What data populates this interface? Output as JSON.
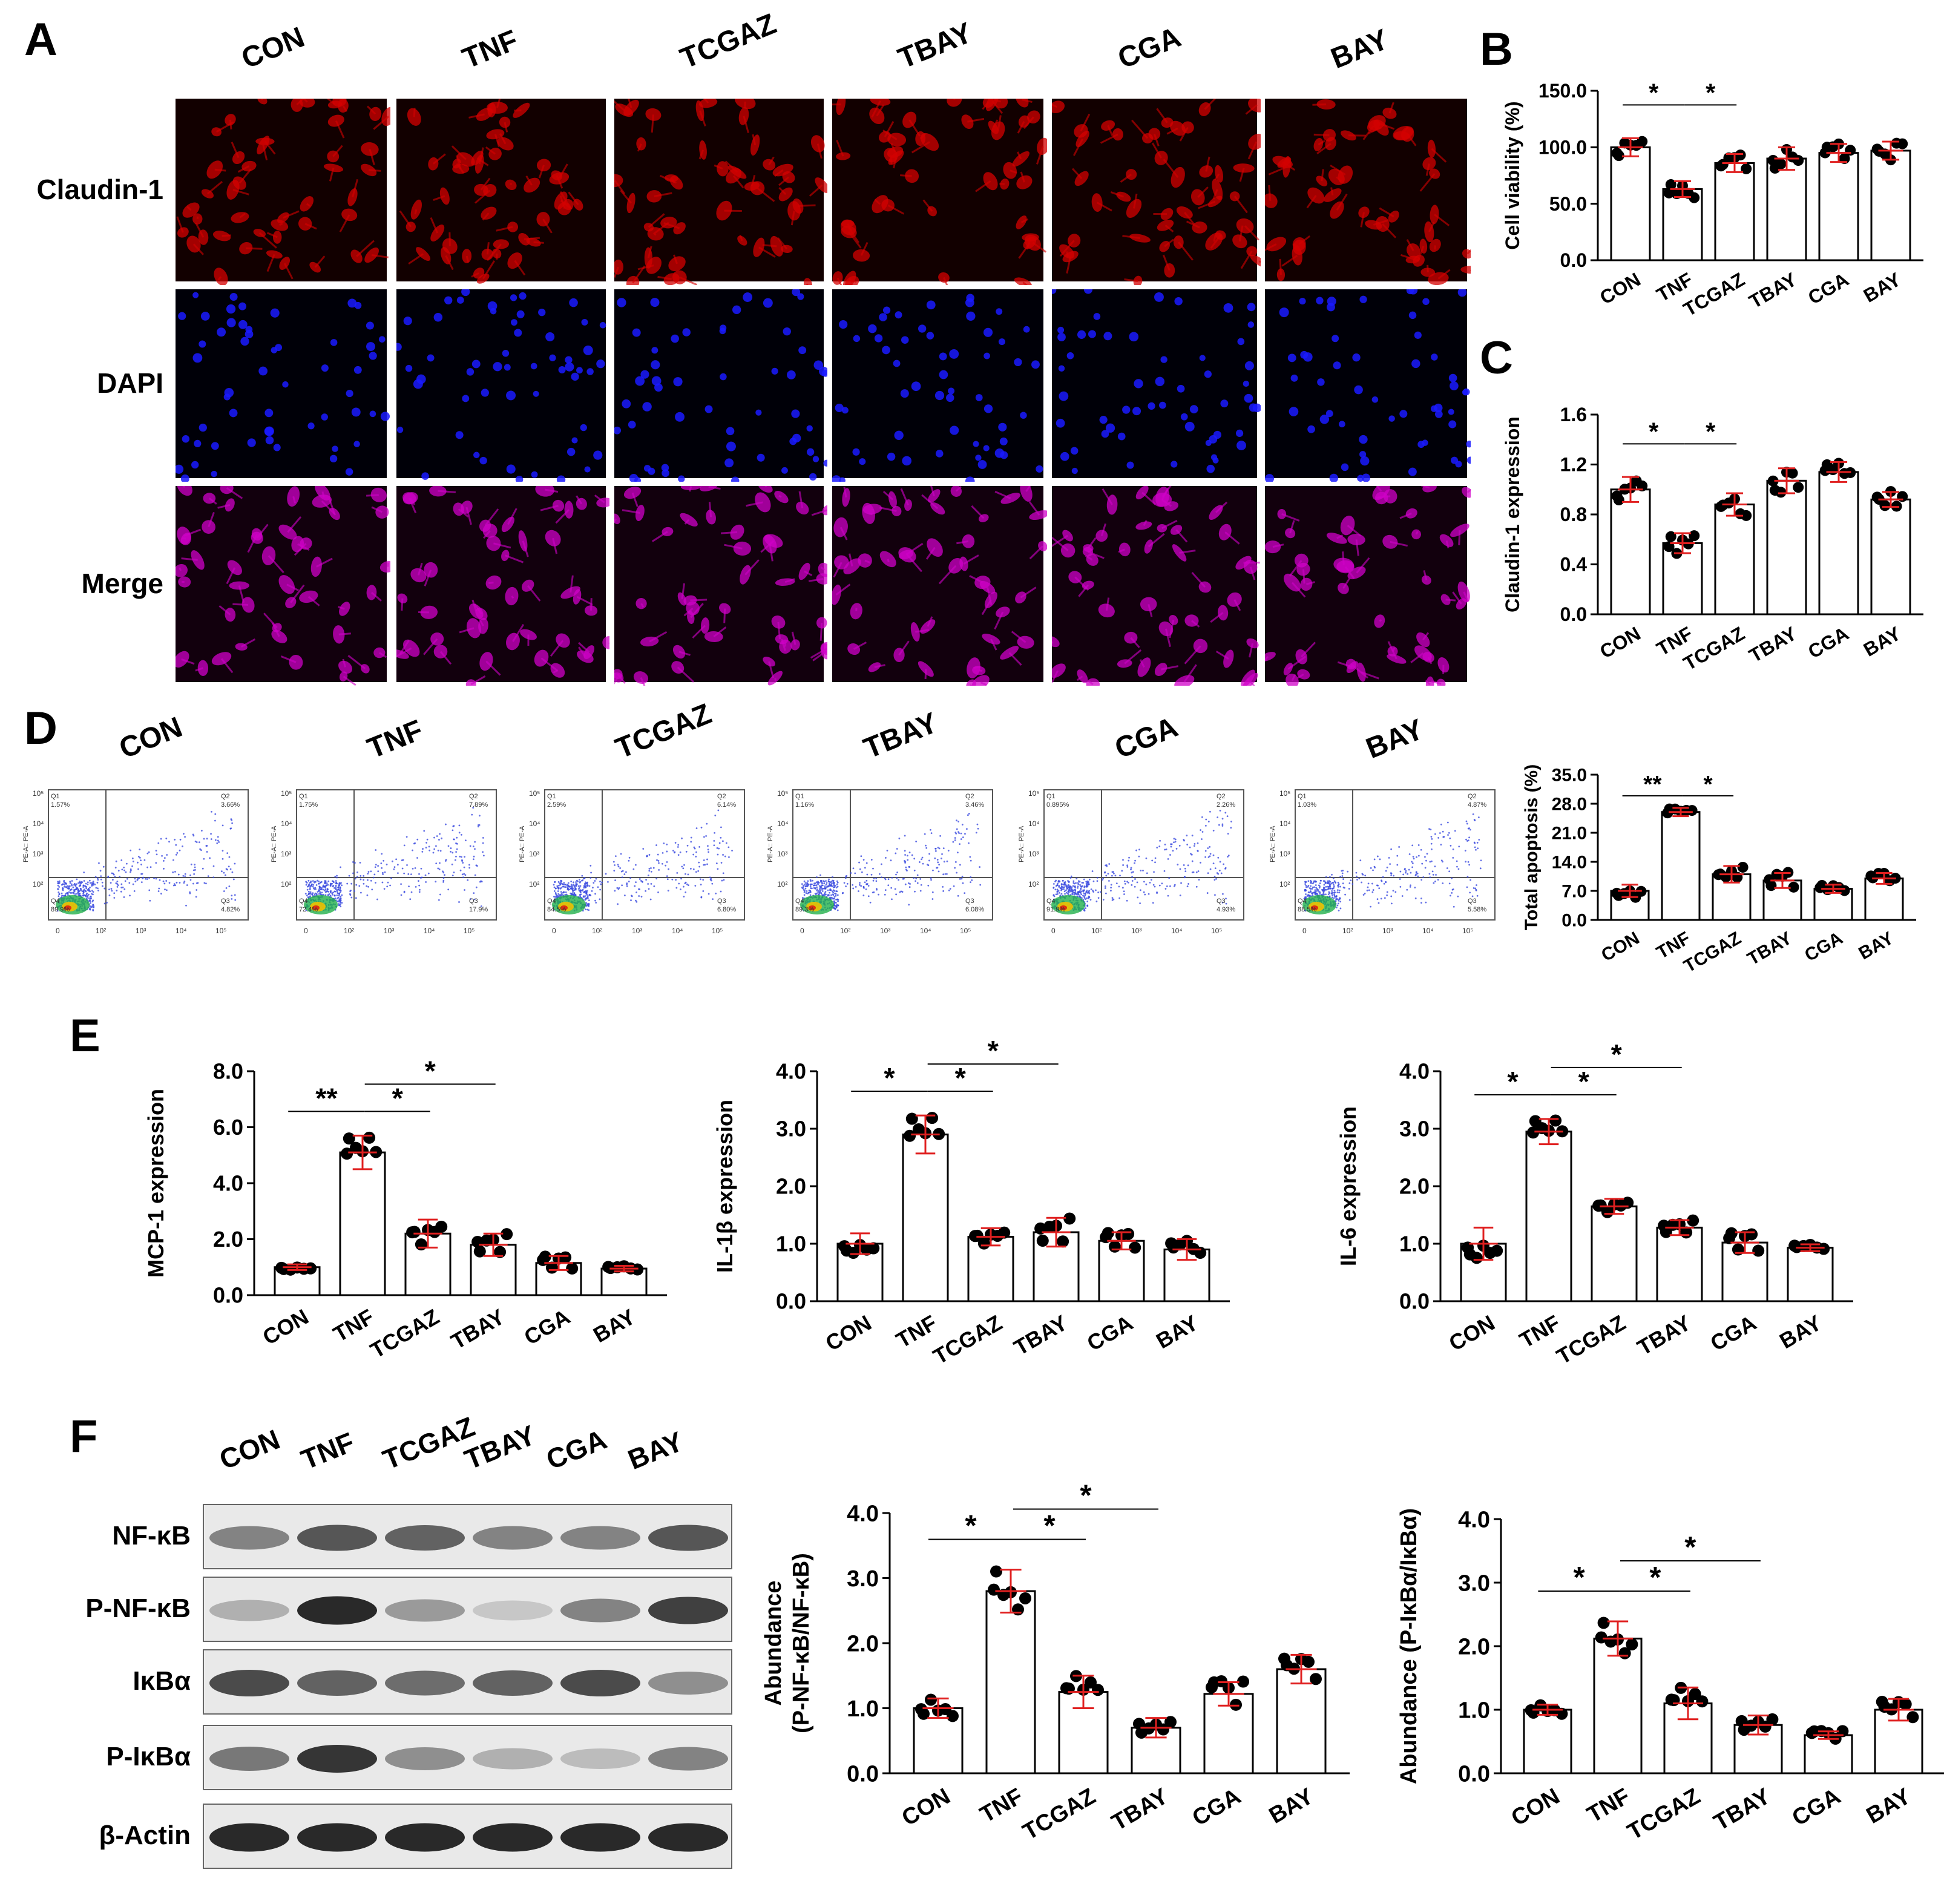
{
  "panels": {
    "A": "A",
    "B": "B",
    "C": "C",
    "D": "D",
    "E": "E",
    "F": "F"
  },
  "groups": [
    "CON",
    "TNF",
    "TCGAZ",
    "TBAY",
    "CGA",
    "BAY"
  ],
  "microscopy": {
    "rows": [
      "Claudin-1",
      "DAPI",
      "Merge"
    ],
    "colors": {
      "red": "#d40000",
      "blue": "#1a1aff",
      "merge": "#d000c8"
    }
  },
  "flow": {
    "plots": [
      {
        "group": "CON",
        "q1": "1.57%",
        "q2": "3.66%",
        "q3": "4.82%",
        "q4": "89.9%"
      },
      {
        "group": "TNF",
        "q1": "1.75%",
        "q2": "7.89%",
        "q3": "17.9%",
        "q4": "72.4%"
      },
      {
        "group": "TCGAZ",
        "q1": "2.59%",
        "q2": "6.14%",
        "q3": "6.80%",
        "q4": "84.5%"
      },
      {
        "group": "TBAY",
        "q1": "1.16%",
        "q2": "3.46%",
        "q3": "6.08%",
        "q4": "89.3%"
      },
      {
        "group": "CGA",
        "q1": "0.895%",
        "q2": "2.26%",
        "q3": "4.93%",
        "q4": "91.9%"
      },
      {
        "group": "BAY",
        "q1": "1.03%",
        "q2": "4.87%",
        "q3": "5.58%",
        "q4": "88.5%"
      }
    ],
    "quadrant_labels": [
      "Q1",
      "Q2",
      "Q3",
      "Q4"
    ],
    "y_axis_label": "PE-A:: PE-A",
    "x_ticks": [
      "0",
      "10²",
      "10³",
      "10⁴",
      "10⁵"
    ],
    "y_ticks": [
      "10²",
      "10³",
      "10⁴",
      "10⁵"
    ]
  },
  "blot": {
    "bands": [
      "NF-κB",
      "P-NF-κB",
      "IκBα",
      "P-IκBα",
      "β-Actin"
    ],
    "intensity": [
      [
        0.55,
        0.75,
        0.7,
        0.55,
        0.55,
        0.75
      ],
      [
        0.35,
        0.95,
        0.45,
        0.25,
        0.55,
        0.85
      ],
      [
        0.8,
        0.7,
        0.65,
        0.7,
        0.8,
        0.5
      ],
      [
        0.6,
        0.9,
        0.5,
        0.35,
        0.3,
        0.55
      ],
      [
        0.95,
        0.95,
        0.95,
        0.95,
        0.95,
        0.95
      ]
    ]
  },
  "chart_data": [
    {
      "id": "B",
      "type": "bar",
      "categories": [
        "CON",
        "TNF",
        "TCGAZ",
        "TBAY",
        "CGA",
        "BAY"
      ],
      "values": [
        100,
        63,
        86,
        90,
        95,
        97
      ],
      "errors": [
        8,
        7,
        8,
        10,
        8,
        8
      ],
      "ylabel": "Cell viability (%)",
      "ylim": [
        0,
        150
      ],
      "yticks": [
        "0.0",
        "50.0",
        "100.0",
        "150.0"
      ],
      "ytick_values": [
        0,
        50,
        100,
        150
      ],
      "sig": [
        {
          "from": 0,
          "to": 1,
          "label": "*",
          "level": 0
        },
        {
          "from": 1,
          "to": 2,
          "label": "*",
          "level": 0
        }
      ]
    },
    {
      "id": "C",
      "type": "bar",
      "categories": [
        "CON",
        "TNF",
        "TCGAZ",
        "TBAY",
        "CGA",
        "BAY"
      ],
      "values": [
        1.0,
        0.57,
        0.88,
        1.07,
        1.14,
        0.92
      ],
      "errors": [
        0.1,
        0.08,
        0.09,
        0.1,
        0.08,
        0.06
      ],
      "ylabel": "Claudin-1 expression",
      "ylim": [
        0,
        1.6
      ],
      "yticks": [
        "0.0",
        "0.4",
        "0.8",
        "1.2",
        "1.6"
      ],
      "ytick_values": [
        0,
        0.4,
        0.8,
        1.2,
        1.6
      ],
      "sig": [
        {
          "from": 0,
          "to": 1,
          "label": "*",
          "level": 0
        },
        {
          "from": 1,
          "to": 2,
          "label": "*",
          "level": 0
        }
      ]
    },
    {
      "id": "D",
      "type": "bar",
      "categories": [
        "CON",
        "TNF",
        "TCGAZ",
        "TBAY",
        "CGA",
        "BAY"
      ],
      "values": [
        7.0,
        26.0,
        11.0,
        9.5,
        7.5,
        10.0
      ],
      "errors": [
        1.5,
        1.0,
        2.0,
        1.8,
        1.0,
        1.3
      ],
      "ylabel": "Total apoptosis (%)",
      "ylim": [
        0,
        35
      ],
      "yticks": [
        "0.0",
        "7.0",
        "14.0",
        "21.0",
        "28.0",
        "35.0"
      ],
      "ytick_values": [
        0,
        7,
        14,
        21,
        28,
        35
      ],
      "sig": [
        {
          "from": 0,
          "to": 1,
          "label": "**",
          "level": 0
        },
        {
          "from": 1,
          "to": 2,
          "label": "*",
          "level": 0
        }
      ]
    },
    {
      "id": "E1",
      "type": "bar",
      "categories": [
        "CON",
        "TNF",
        "TCGAZ",
        "TBAY",
        "CGA",
        "BAY"
      ],
      "values": [
        1.0,
        5.1,
        2.2,
        1.8,
        1.15,
        0.95
      ],
      "errors": [
        0.1,
        0.6,
        0.5,
        0.4,
        0.25,
        0.1
      ],
      "ylabel": "MCP-1 expression",
      "ylim": [
        0,
        8
      ],
      "yticks": [
        "0.0",
        "2.0",
        "4.0",
        "6.0",
        "8.0"
      ],
      "ytick_values": [
        0,
        2,
        4,
        6,
        8
      ],
      "sig": [
        {
          "from": 0,
          "to": 1,
          "label": "**",
          "level": 0
        },
        {
          "from": 1,
          "to": 2,
          "label": "*",
          "level": 0
        },
        {
          "from": 1,
          "to": 3,
          "label": "*",
          "level": 1
        }
      ]
    },
    {
      "id": "E2",
      "type": "bar",
      "categories": [
        "CON",
        "TNF",
        "TCGAZ",
        "TBAY",
        "CGA",
        "BAY"
      ],
      "values": [
        1.0,
        2.9,
        1.12,
        1.2,
        1.05,
        0.9
      ],
      "errors": [
        0.18,
        0.33,
        0.15,
        0.25,
        0.15,
        0.18
      ],
      "ylabel": "IL-1β expression",
      "ylim": [
        0,
        4
      ],
      "yticks": [
        "0.0",
        "1.0",
        "2.0",
        "3.0",
        "4.0"
      ],
      "ytick_values": [
        0,
        1,
        2,
        3,
        4
      ],
      "sig": [
        {
          "from": 0,
          "to": 1,
          "label": "*",
          "level": 0
        },
        {
          "from": 1,
          "to": 2,
          "label": "*",
          "level": 0
        },
        {
          "from": 1,
          "to": 3,
          "label": "*",
          "level": 1
        }
      ]
    },
    {
      "id": "E3",
      "type": "bar",
      "categories": [
        "CON",
        "TNF",
        "TCGAZ",
        "TBAY",
        "CGA",
        "BAY"
      ],
      "values": [
        1.0,
        2.95,
        1.65,
        1.28,
        1.02,
        0.93
      ],
      "errors": [
        0.28,
        0.22,
        0.13,
        0.13,
        0.18,
        0.06
      ],
      "ylabel": "IL-6 expression",
      "ylim": [
        0,
        4
      ],
      "yticks": [
        "0.0",
        "1.0",
        "2.0",
        "3.0",
        "4.0"
      ],
      "ytick_values": [
        0,
        1,
        2,
        3,
        4
      ],
      "sig": [
        {
          "from": 0,
          "to": 1,
          "label": "*",
          "level": 0
        },
        {
          "from": 1,
          "to": 2,
          "label": "*",
          "level": 0
        },
        {
          "from": 1,
          "to": 3,
          "label": "*",
          "level": 1
        }
      ]
    },
    {
      "id": "F1",
      "type": "bar",
      "categories": [
        "CON",
        "TNF",
        "TCGAZ",
        "TBAY",
        "CGA",
        "BAY"
      ],
      "values": [
        1.0,
        2.8,
        1.25,
        0.7,
        1.22,
        1.6
      ],
      "errors": [
        0.15,
        0.33,
        0.25,
        0.15,
        0.18,
        0.22
      ],
      "ylabel": "Abundance\n(P-NF-κB/NF-κB)",
      "ylim": [
        0,
        4
      ],
      "yticks": [
        "0.0",
        "1.0",
        "2.0",
        "3.0",
        "4.0"
      ],
      "ytick_values": [
        0,
        1,
        2,
        3,
        4
      ],
      "sig": [
        {
          "from": 0,
          "to": 1,
          "label": "*",
          "level": 0
        },
        {
          "from": 1,
          "to": 2,
          "label": "*",
          "level": 0
        },
        {
          "from": 1,
          "to": 3,
          "label": "*",
          "level": 1
        }
      ]
    },
    {
      "id": "F2",
      "type": "bar",
      "categories": [
        "CON",
        "TNF",
        "TCGAZ",
        "TBAY",
        "CGA",
        "BAY"
      ],
      "values": [
        1.0,
        2.12,
        1.1,
        0.76,
        0.6,
        1.0
      ],
      "errors": [
        0.08,
        0.27,
        0.25,
        0.15,
        0.06,
        0.17
      ],
      "ylabel": "Abundance (P-IκBα/IκBα)",
      "ylim": [
        0,
        4
      ],
      "yticks": [
        "0.0",
        "1.0",
        "2.0",
        "3.0",
        "4.0"
      ],
      "ytick_values": [
        0,
        1,
        2,
        3,
        4
      ],
      "sig": [
        {
          "from": 0,
          "to": 1,
          "label": "*",
          "level": 0
        },
        {
          "from": 1,
          "to": 2,
          "label": "*",
          "level": 0
        },
        {
          "from": 1,
          "to": 3,
          "label": "*",
          "level": 1
        }
      ]
    }
  ]
}
